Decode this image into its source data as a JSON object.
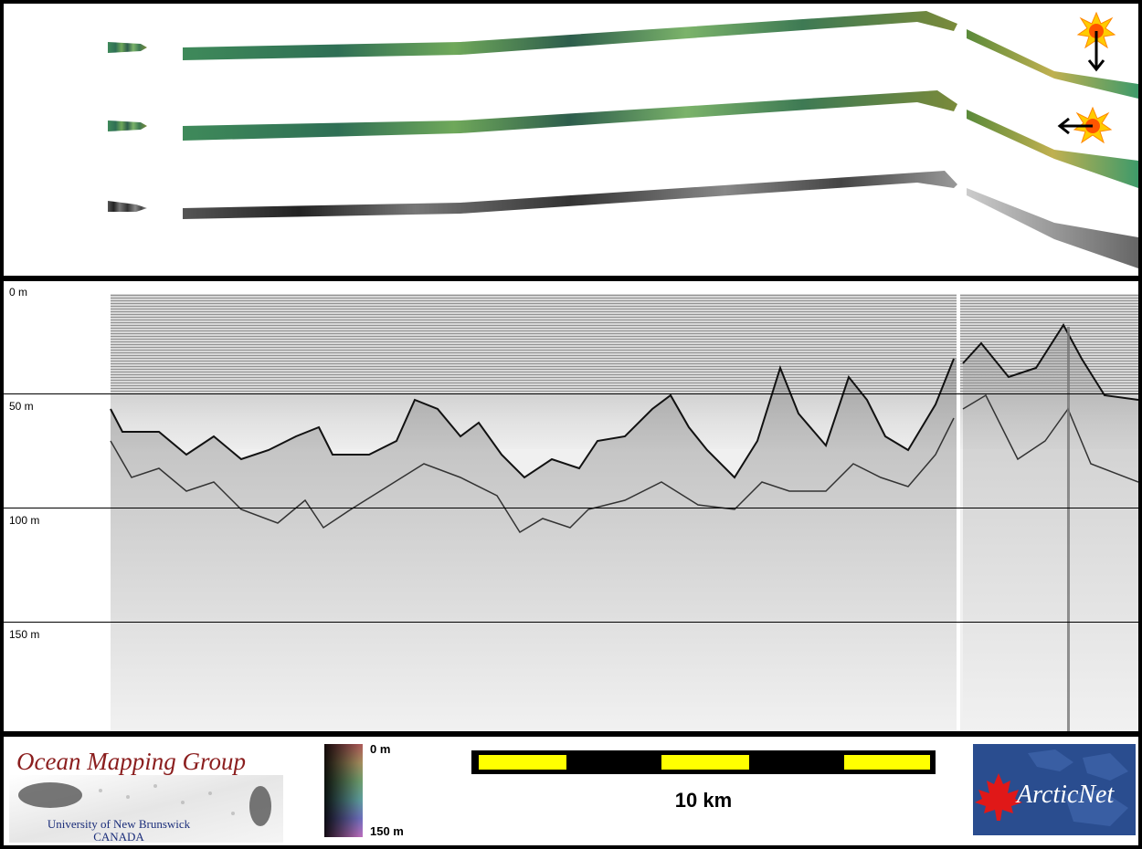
{
  "profile": {
    "depth_labels": [
      "0 m",
      "50 m",
      "100 m",
      "150 m"
    ]
  },
  "legend": {
    "omg": {
      "title": "Ocean Mapping Group",
      "line1": "University of New Brunswick",
      "line2": "CANADA"
    },
    "colorbar": {
      "top_label": "0 m",
      "bottom_label": "150 m"
    },
    "scalebar": {
      "label": "10 km",
      "segments": 5
    },
    "arcticnet": {
      "text": "ArcticNet"
    }
  },
  "icons": [
    "sun-arrow-down-icon",
    "sun-arrow-left-icon",
    "maple-leaf-icon"
  ],
  "colors": {
    "scalebar_yellow": "#ffff00",
    "omg_red": "#8b1e1e",
    "arcticnet_blue": "#2a4d8f"
  }
}
